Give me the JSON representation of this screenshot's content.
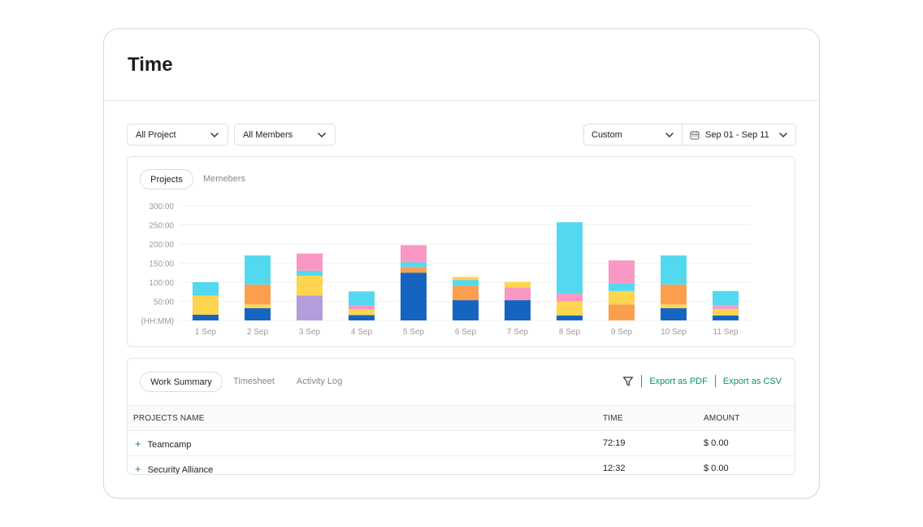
{
  "page": {
    "title": "Time"
  },
  "filters": {
    "project": "All Project",
    "members": "All Members",
    "period": "Custom",
    "date_range": "Sep 01 - Sep 11"
  },
  "chart_tabs": {
    "active": "Projects",
    "inactive": "Memebers"
  },
  "chart_data": {
    "type": "bar",
    "stacked": true,
    "ylabel": "(HH:MM)",
    "yticks": [
      "50:00",
      "100:00",
      "150:00",
      "200:00",
      "250:00",
      "300:00"
    ],
    "ylim": [
      0,
      300
    ],
    "grid": true,
    "categories": [
      "1 Sep",
      "2 Sep",
      "3 Sep",
      "4 Sep",
      "5 Sep",
      "6 Sep",
      "7 Sep",
      "8 Sep",
      "9 Sep",
      "10 Sep",
      "11 Sep"
    ],
    "series": [
      {
        "color": "#1565c0",
        "values": [
          15,
          32,
          0,
          14,
          125,
          53,
          53,
          13,
          0,
          32,
          13
        ]
      },
      {
        "color": "#b39ddb",
        "values": [
          0,
          0,
          65,
          0,
          0,
          0,
          0,
          0,
          0,
          0,
          0
        ]
      },
      {
        "color": "#fb9f4f",
        "values": [
          0,
          0,
          0,
          0,
          0,
          0,
          0,
          0,
          42,
          0,
          0
        ]
      },
      {
        "color": "#ffd54f",
        "values": [
          50,
          10,
          52,
          15,
          0,
          0,
          0,
          37,
          35,
          10,
          17
        ]
      },
      {
        "color": "#fb9f4f",
        "values": [
          0,
          52,
          0,
          0,
          15,
          38,
          0,
          0,
          0,
          52,
          0
        ]
      },
      {
        "color": "#f998c4",
        "values": [
          0,
          0,
          0,
          10,
          0,
          0,
          33,
          20,
          0,
          0,
          10
        ]
      },
      {
        "color": "#52d9ef",
        "values": [
          35,
          76,
          13,
          37,
          12,
          15,
          0,
          187,
          20,
          76,
          37
        ]
      },
      {
        "color": "#f998c4",
        "values": [
          0,
          0,
          45,
          0,
          45,
          0,
          0,
          0,
          60,
          0,
          0
        ]
      },
      {
        "color": "#ffd54f",
        "values": [
          0,
          0,
          0,
          0,
          0,
          8,
          15,
          0,
          0,
          0,
          0
        ]
      }
    ]
  },
  "summary_tabs": {
    "active": "Work Summary",
    "tab2": "Timesheet",
    "tab3": "Activity Log"
  },
  "actions": {
    "export_pdf": "Export as PDF",
    "export_csv": "Export as CSV"
  },
  "table": {
    "columns": {
      "name": "PROJECTS NAME",
      "time": "TIME",
      "amount": "AMOUNT"
    },
    "rows": [
      {
        "name": "Teamcamp",
        "time": "72:19",
        "amount": "$ 0.00"
      },
      {
        "name": "Security Alliance",
        "time": "12:32",
        "amount": "$ 0.00"
      }
    ]
  },
  "icons": {
    "expand": "+"
  }
}
